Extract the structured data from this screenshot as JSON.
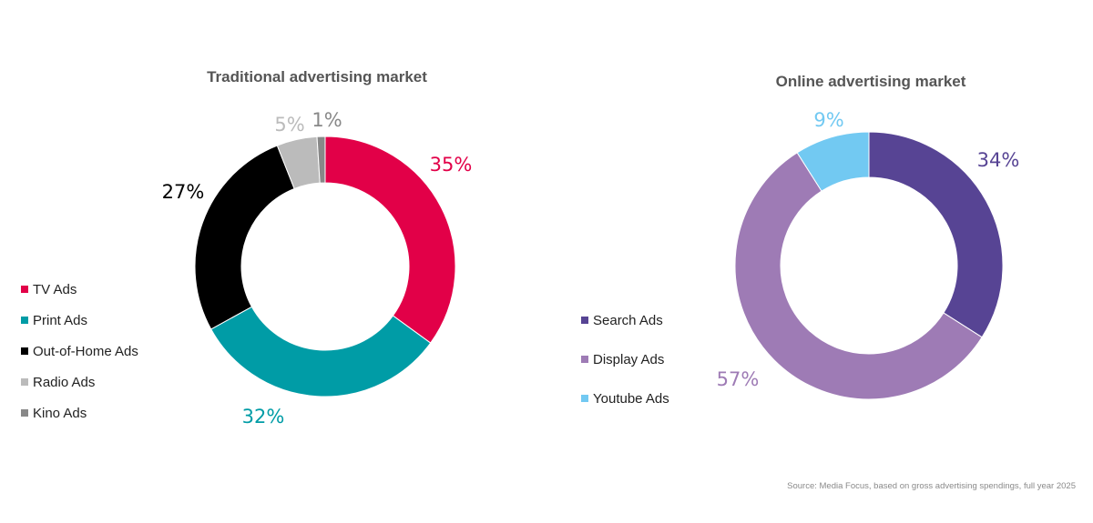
{
  "chart_data": [
    {
      "type": "pie",
      "title": "Traditional advertising market",
      "categories": [
        "TV Ads",
        "Print Ads",
        "Out-of-Home Ads",
        "Radio Ads",
        "Kino Ads"
      ],
      "values": [
        35,
        32,
        27,
        5,
        1
      ],
      "labels": [
        "35%",
        "32%",
        "27%",
        "5%",
        "1%"
      ],
      "colors": [
        "#e20048",
        "#009ca6",
        "#000000",
        "#bbbbbb",
        "#888888"
      ],
      "style": "donut",
      "legend_position": "left"
    },
    {
      "type": "pie",
      "title": "Online advertising market",
      "categories": [
        "Search Ads",
        "Display Ads",
        "Youtube Ads"
      ],
      "values": [
        34,
        57,
        9
      ],
      "labels": [
        "34%",
        "57%",
        "9%"
      ],
      "colors": [
        "#574494",
        "#9e7bb5",
        "#72c9f2"
      ],
      "style": "donut",
      "legend_position": "left"
    }
  ],
  "source_note": "Source: Media Focus, based on gross advertising spendings, full year 2025"
}
